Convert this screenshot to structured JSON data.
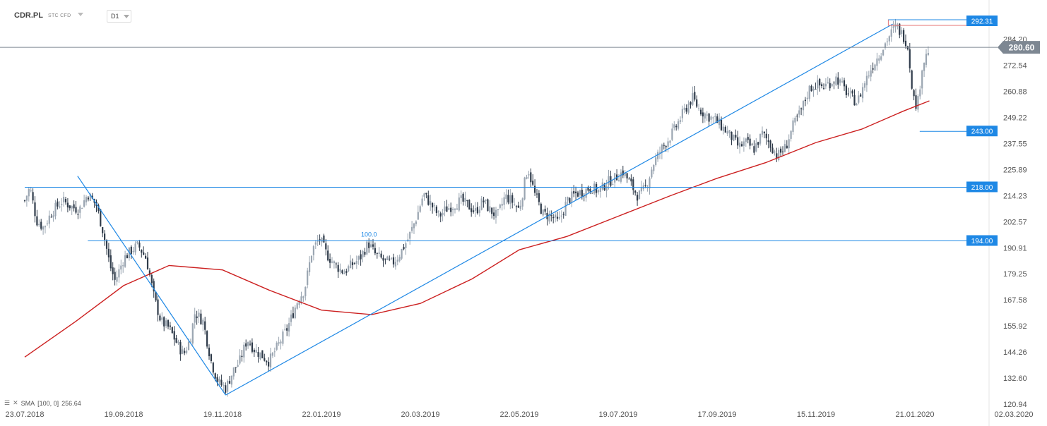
{
  "header": {
    "symbol": "CDR.PL",
    "subtype": "STC CFD",
    "timeframe": "D1"
  },
  "indicator_legend": {
    "name": "SMA",
    "params": "[100, 0]",
    "value": "256.64"
  },
  "colors": {
    "bull": "#9aa5b1",
    "bear": "#2f3b4a",
    "sma": "#cc2020",
    "lines": "#1e88e5",
    "current_price": "#7d8792",
    "top_zone": "#e57373"
  },
  "chart_data": {
    "type": "candlestick",
    "title": "",
    "x_tick_labels": [
      "23.07.2018",
      "19.09.2018",
      "19.11.2018",
      "22.01.2019",
      "20.03.2019",
      "22.05.2019",
      "19.07.2019",
      "17.09.2019",
      "15.11.2019",
      "21.01.2020",
      "02.03.2020"
    ],
    "y_tick_labels": [
      "284.20",
      "272.54",
      "260.88",
      "249.22",
      "237.55",
      "225.89",
      "214.23",
      "202.57",
      "190.91",
      "179.25",
      "167.58",
      "155.92",
      "144.26",
      "132.60",
      "120.94"
    ],
    "ylim": [
      120.94,
      292.31
    ],
    "current_price": "280.60",
    "level_labels": [
      "292.31",
      "243.00",
      "218.00",
      "194.00"
    ],
    "fib_label": "100.0",
    "close_path": [
      [
        "23.07.2018",
        212
      ],
      [
        "26.07.2018",
        218
      ],
      [
        "30.07.2018",
        203
      ],
      [
        "03.08.2018",
        200
      ],
      [
        "08.08.2018",
        207
      ],
      [
        "14.08.2018",
        212
      ],
      [
        "20.08.2018",
        209
      ],
      [
        "24.08.2018",
        208
      ],
      [
        "29.08.2018",
        215
      ],
      [
        "03.09.2018",
        210
      ],
      [
        "07.09.2018",
        198
      ],
      [
        "11.09.2018",
        183
      ],
      [
        "14.09.2018",
        176
      ],
      [
        "19.09.2018",
        186
      ],
      [
        "24.09.2018",
        190
      ],
      [
        "28.09.2018",
        192
      ],
      [
        "03.10.2018",
        186
      ],
      [
        "08.10.2018",
        168
      ],
      [
        "12.10.2018",
        158
      ],
      [
        "17.10.2018",
        155
      ],
      [
        "22.10.2018",
        148
      ],
      [
        "26.10.2018",
        143
      ],
      [
        "30.10.2018",
        150
      ],
      [
        "02.11.2018",
        162
      ],
      [
        "07.11.2018",
        158
      ],
      [
        "12.11.2018",
        140
      ],
      [
        "16.11.2018",
        131
      ],
      [
        "21.11.2018",
        128
      ],
      [
        "26.11.2018",
        136
      ],
      [
        "30.11.2018",
        140
      ],
      [
        "05.12.2018",
        150
      ],
      [
        "10.12.2018",
        145
      ],
      [
        "14.12.2018",
        143
      ],
      [
        "19.12.2018",
        140
      ],
      [
        "24.12.2018",
        146
      ],
      [
        "31.12.2018",
        155
      ],
      [
        "07.01.2019",
        168
      ],
      [
        "11.01.2019",
        172
      ],
      [
        "16.01.2019",
        190
      ],
      [
        "21.01.2019",
        195
      ],
      [
        "25.01.2019",
        188
      ],
      [
        "30.01.2019",
        183
      ],
      [
        "04.02.2019",
        180
      ],
      [
        "08.02.2019",
        183
      ],
      [
        "13.02.2019",
        186
      ],
      [
        "18.02.2019",
        193
      ],
      [
        "22.02.2019",
        188
      ],
      [
        "27.02.2019",
        185
      ],
      [
        "04.03.2019",
        184
      ],
      [
        "08.03.2019",
        188
      ],
      [
        "13.03.2019",
        195
      ],
      [
        "18.03.2019",
        205
      ],
      [
        "22.03.2019",
        215
      ],
      [
        "27.03.2019",
        210
      ],
      [
        "01.04.2019",
        205
      ],
      [
        "05.04.2019",
        208
      ],
      [
        "10.04.2019",
        210
      ],
      [
        "15.04.2019",
        212
      ],
      [
        "19.04.2019",
        210
      ],
      [
        "24.04.2019",
        207
      ],
      [
        "29.04.2019",
        212
      ],
      [
        "03.05.2019",
        208
      ],
      [
        "08.05.2019",
        205
      ],
      [
        "13.05.2019",
        214
      ],
      [
        "17.05.2019",
        212
      ],
      [
        "22.05.2019",
        208
      ],
      [
        "27.05.2019",
        227
      ],
      [
        "31.05.2019",
        215
      ],
      [
        "05.06.2019",
        206
      ],
      [
        "10.06.2019",
        205
      ],
      [
        "14.06.2019",
        202
      ],
      [
        "19.06.2019",
        212
      ],
      [
        "24.06.2019",
        215
      ],
      [
        "28.06.2019",
        216
      ],
      [
        "03.07.2019",
        218
      ],
      [
        "08.07.2019",
        216
      ],
      [
        "12.07.2019",
        220
      ],
      [
        "17.07.2019",
        222
      ],
      [
        "22.07.2019",
        225
      ],
      [
        "26.07.2019",
        220
      ],
      [
        "31.07.2019",
        214
      ],
      [
        "05.08.2019",
        218
      ],
      [
        "09.08.2019",
        228
      ],
      [
        "14.08.2019",
        235
      ],
      [
        "19.08.2019",
        240
      ],
      [
        "23.08.2019",
        245
      ],
      [
        "28.08.2019",
        252
      ],
      [
        "02.09.2019",
        258
      ],
      [
        "06.09.2019",
        253
      ],
      [
        "11.09.2019",
        250
      ],
      [
        "16.09.2019",
        248
      ],
      [
        "20.09.2019",
        245
      ],
      [
        "25.09.2019",
        241
      ],
      [
        "30.09.2019",
        236
      ],
      [
        "04.10.2019",
        238
      ],
      [
        "09.10.2019",
        235
      ],
      [
        "14.10.2019",
        242
      ],
      [
        "18.10.2019",
        238
      ],
      [
        "23.10.2019",
        232
      ],
      [
        "28.10.2019",
        236
      ],
      [
        "01.11.2019",
        245
      ],
      [
        "06.11.2019",
        252
      ],
      [
        "11.11.2019",
        262
      ],
      [
        "15.11.2019",
        264
      ],
      [
        "20.11.2019",
        263
      ],
      [
        "25.11.2019",
        265
      ],
      [
        "29.11.2019",
        267
      ],
      [
        "04.12.2019",
        262
      ],
      [
        "09.12.2019",
        258
      ],
      [
        "13.12.2019",
        256
      ],
      [
        "18.12.2019",
        265
      ],
      [
        "23.12.2019",
        272
      ],
      [
        "30.12.2019",
        280
      ],
      [
        "03.01.2020",
        285
      ],
      [
        "08.01.2020",
        290
      ],
      [
        "13.01.2020",
        286
      ],
      [
        "16.01.2020",
        282
      ],
      [
        "20.01.2020",
        258
      ],
      [
        "22.01.2020",
        254
      ],
      [
        "24.01.2020",
        272
      ],
      [
        "27.01.2020",
        280.6
      ]
    ],
    "sma_series": {
      "name": "SMA",
      "points": [
        [
          "23.07.2018",
          142
        ],
        [
          "22.08.2018",
          158
        ],
        [
          "19.09.2018",
          174
        ],
        [
          "17.10.2018",
          183
        ],
        [
          "19.11.2018",
          181
        ],
        [
          "19.12.2018",
          172
        ],
        [
          "22.01.2019",
          163
        ],
        [
          "20.02.2019",
          161
        ],
        [
          "20.03.2019",
          166
        ],
        [
          "22.04.2019",
          177
        ],
        [
          "22.05.2019",
          190
        ],
        [
          "19.06.2019",
          196
        ],
        [
          "19.07.2019",
          205
        ],
        [
          "19.08.2019",
          214
        ],
        [
          "17.09.2019",
          222
        ],
        [
          "16.10.2019",
          229
        ],
        [
          "15.11.2019",
          238
        ],
        [
          "16.12.2019",
          244
        ],
        [
          "13.01.2020",
          252
        ],
        [
          "27.01.2020",
          256.64
        ]
      ]
    },
    "trendlines": [
      {
        "from": [
          "23.08.2018",
          223
        ],
        "to": [
          "21.11.2018",
          125
        ]
      },
      {
        "from": [
          "21.11.2018",
          125
        ],
        "to": [
          "06.01.2020",
          291
        ]
      }
    ],
    "horizontal_levels": [
      {
        "value": 292.31,
        "label": "292.31",
        "from": "03.01.2020"
      },
      {
        "value": 243.0,
        "label": "243.00",
        "from": "23.01.2020"
      },
      {
        "value": 218.0,
        "label": "218.00",
        "from": "23.07.2018"
      },
      {
        "value": 194.0,
        "label": "194.00",
        "from": "29.08.2018"
      }
    ]
  }
}
